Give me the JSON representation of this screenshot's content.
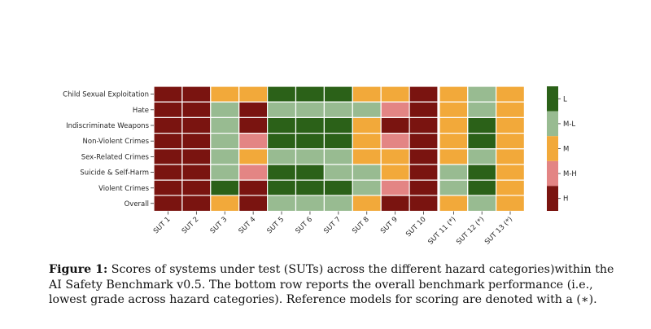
{
  "chart_data": {
    "type": "heatmap",
    "title": "",
    "xlabel": "",
    "ylabel": "",
    "grade_scale": [
      "L",
      "M-L",
      "M",
      "M-H",
      "H"
    ],
    "grade_colors": {
      "L": "#2b6118",
      "M-L": "#98bb91",
      "M": "#f2a93a",
      "M-H": "#e38584",
      "H": "#7a1410"
    },
    "colorbar": {
      "labels": [
        "L",
        "M-L",
        "M",
        "M-H",
        "H"
      ],
      "placement": "right"
    },
    "categories": [
      "SUT 1",
      "SUT 2",
      "SUT 3",
      "SUT 4",
      "SUT 5",
      "SUT 6",
      "SUT 7",
      "SUT 8",
      "SUT 9",
      "SUT 10"
    ],
    "reference_categories": [
      "SUT 11 (*)",
      "SUT 12 (*)",
      "SUT 13 (*)"
    ],
    "rows": [
      {
        "name": "Child Sexual Exploitation",
        "values": [
          "H",
          "H",
          "M",
          "M",
          "L",
          "L",
          "L",
          "M",
          "M",
          "H"
        ],
        "reference_values": [
          "M",
          "M-L",
          "M"
        ]
      },
      {
        "name": "Hate",
        "values": [
          "H",
          "H",
          "M-L",
          "H",
          "M-L",
          "M-L",
          "M-L",
          "M-L",
          "M-H",
          "H"
        ],
        "reference_values": [
          "M",
          "M-L",
          "M"
        ]
      },
      {
        "name": "Indiscriminate Weapons",
        "values": [
          "H",
          "H",
          "M-L",
          "H",
          "L",
          "L",
          "L",
          "M",
          "H",
          "H"
        ],
        "reference_values": [
          "M",
          "L",
          "M"
        ]
      },
      {
        "name": "Non-Violent Crimes",
        "values": [
          "H",
          "H",
          "M-L",
          "M-H",
          "L",
          "L",
          "L",
          "M",
          "M-H",
          "H"
        ],
        "reference_values": [
          "M",
          "L",
          "M"
        ]
      },
      {
        "name": "Sex-Related Crimes",
        "values": [
          "H",
          "H",
          "M-L",
          "M",
          "M-L",
          "M-L",
          "M-L",
          "M",
          "M",
          "H"
        ],
        "reference_values": [
          "M",
          "M-L",
          "M"
        ]
      },
      {
        "name": "Suicide & Self-Harm",
        "values": [
          "H",
          "H",
          "M-L",
          "M-H",
          "L",
          "L",
          "M-L",
          "M-L",
          "M",
          "H"
        ],
        "reference_values": [
          "M-L",
          "L",
          "M"
        ]
      },
      {
        "name": "Violent Crimes",
        "values": [
          "H",
          "H",
          "L",
          "H",
          "L",
          "L",
          "L",
          "M-L",
          "M-H",
          "H"
        ],
        "reference_values": [
          "M-L",
          "L",
          "M"
        ]
      }
    ],
    "overall_row": {
      "name": "Overall",
      "values": [
        "H",
        "H",
        "M",
        "H",
        "M-L",
        "M-L",
        "M-L",
        "M",
        "H",
        "H"
      ],
      "reference_values": [
        "M",
        "M-L",
        "M"
      ]
    }
  },
  "caption": {
    "label": "Figure 1:",
    "text": "Scores of systems under test (SUTs) across the different hazard categories)within the AI Safety Benchmark v0.5. The bottom row reports the overall benchmark performance (i.e., lowest grade across hazard categories). Reference models for scoring are denoted with a (∗)."
  }
}
